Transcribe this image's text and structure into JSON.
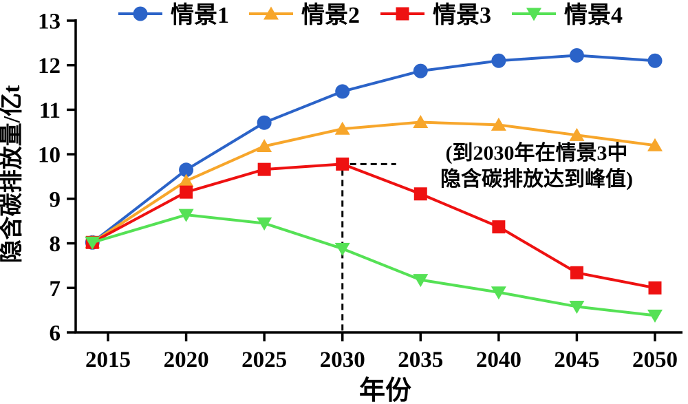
{
  "figure": {
    "background": "#ffffff",
    "axis_color": "#000000",
    "text_color": "#000000"
  },
  "chart_data": {
    "type": "line",
    "x": [
      2014,
      2020,
      2025,
      2030,
      2035,
      2040,
      2045,
      2050
    ],
    "series": [
      {
        "name": "情景1",
        "marker": "circle",
        "color": "#2b63c8",
        "values": [
          8.02,
          9.65,
          10.71,
          11.41,
          11.87,
          12.1,
          12.22,
          12.1
        ]
      },
      {
        "name": "情景2",
        "marker": "triangle-up",
        "color": "#f7a62b",
        "values": [
          8.02,
          9.4,
          10.18,
          10.57,
          10.72,
          10.66,
          10.43,
          10.2
        ]
      },
      {
        "name": "情景3",
        "marker": "square",
        "color": "#ee1111",
        "values": [
          8.02,
          9.15,
          9.66,
          9.78,
          9.11,
          8.37,
          7.34,
          7.0
        ]
      },
      {
        "name": "情景4",
        "marker": "triangle-down",
        "color": "#55e155",
        "values": [
          8.02,
          8.64,
          8.45,
          7.88,
          7.18,
          6.9,
          6.58,
          6.38
        ]
      }
    ],
    "title": "",
    "xlabel": "年份",
    "ylabel": "隐含碳排放量/亿t",
    "x_ticks": [
      2015,
      2020,
      2025,
      2030,
      2035,
      2040,
      2045,
      2050
    ],
    "y_ticks": [
      6,
      7,
      8,
      9,
      10,
      11,
      12,
      13
    ],
    "xlim": [
      2013,
      2051.7
    ],
    "ylim": [
      6,
      13
    ],
    "grid": false,
    "legend_position": "top",
    "annotation": {
      "line1": "(到2030年在情景3中",
      "line2": "隐含碳排放达到峰值)",
      "guide_color": "#000000",
      "peak_series": "情景3",
      "peak_year": 2030,
      "peak_value": 9.78
    }
  }
}
